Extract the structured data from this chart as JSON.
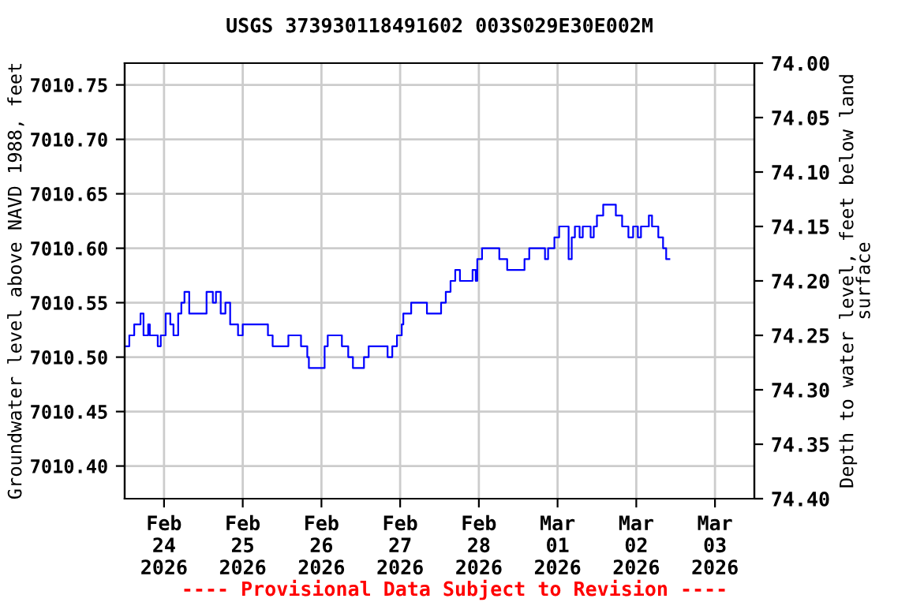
{
  "chart_data": {
    "type": "step",
    "title": "USGS 373930118491602 003S029E30E002M",
    "ylabel": "Groundwater level above NAVD 1988, feet",
    "y2label": "Depth to water level, feet below land\nsurface",
    "x": [
      "2026-02-23T12:30",
      "2026-02-23T13:25",
      "2026-02-23T14:55",
      "2026-02-23T16:50",
      "2026-02-23T17:45",
      "2026-02-23T19:10",
      "2026-02-23T19:40",
      "2026-02-23T22:05",
      "2026-02-23T23:00",
      "2026-02-24T00:30",
      "2026-02-24T01:55",
      "2026-02-24T02:53",
      "2026-02-24T04:19",
      "2026-02-24T05:17",
      "2026-02-24T06:14",
      "2026-02-24T07:41",
      "2026-02-24T12:29",
      "2026-02-24T12:58",
      "2026-02-24T14:53",
      "2026-02-24T15:50",
      "2026-02-24T17:17",
      "2026-02-24T18:43",
      "2026-02-24T20:10",
      "2026-02-24T22:34",
      "2026-02-25T00:00",
      "2026-02-25T07:41",
      "2026-02-25T09:07",
      "2026-02-25T13:55",
      "2026-02-25T17:46",
      "2026-02-25T19:41",
      "2026-02-25T20:10",
      "2026-02-25T23:31",
      "2026-02-26T00:58",
      "2026-02-26T01:55",
      "2026-02-26T06:14",
      "2026-02-26T08:10",
      "2026-02-26T09:36",
      "2026-02-26T12:58",
      "2026-02-26T14:24",
      "2026-02-26T20:10",
      "2026-02-26T21:36",
      "2026-02-26T23:02",
      "2026-02-27T00:29",
      "2026-02-27T00:58",
      "2026-02-27T03:22",
      "2026-02-27T08:10",
      "2026-02-27T12:29",
      "2026-02-27T13:55",
      "2026-02-27T15:22",
      "2026-02-27T16:48",
      "2026-02-27T18:14",
      "2026-02-27T22:05",
      "2026-02-27T23:02",
      "2026-02-27T23:31",
      "2026-02-28T00:58",
      "2026-02-28T06:14",
      "2026-02-28T08:38",
      "2026-02-28T13:55",
      "2026-02-28T15:22",
      "2026-02-28T20:10",
      "2026-02-28T21:07",
      "2026-02-28T23:02",
      "2026-03-01T00:29",
      "2026-03-01T03:22",
      "2026-03-01T04:19",
      "2026-03-01T05:17",
      "2026-03-01T06:43",
      "2026-03-01T07:41",
      "2026-03-01T10:05",
      "2026-03-01T11:02",
      "2026-03-01T12:00",
      "2026-03-01T13:55",
      "2026-03-01T17:46",
      "2026-03-01T19:41",
      "2026-03-01T21:36",
      "2026-03-01T23:02",
      "2026-03-02T00:29",
      "2026-03-02T01:26",
      "2026-03-02T03:50",
      "2026-03-02T04:48",
      "2026-03-02T06:43",
      "2026-03-02T08:10",
      "2026-03-02T09:07",
      "2026-03-02T10:05"
    ],
    "series": [
      {
        "color": "#0000ff",
        "values": [
          7010.51,
          7010.52,
          7010.53,
          7010.54,
          7010.52,
          7010.53,
          7010.52,
          7010.51,
          7010.52,
          7010.54,
          7010.53,
          7010.52,
          7010.54,
          7010.55,
          7010.56,
          7010.54,
          7010.54,
          7010.56,
          7010.55,
          7010.56,
          7010.54,
          7010.55,
          7010.53,
          7010.52,
          7010.53,
          7010.52,
          7010.51,
          7010.52,
          7010.51,
          7010.5,
          7010.49,
          7010.49,
          7010.51,
          7010.52,
          7010.51,
          7010.5,
          7010.49,
          7010.5,
          7010.51,
          7010.5,
          7010.51,
          7010.52,
          7010.53,
          7010.54,
          7010.55,
          7010.54,
          7010.55,
          7010.56,
          7010.57,
          7010.58,
          7010.57,
          7010.58,
          7010.57,
          7010.59,
          7010.6,
          7010.59,
          7010.58,
          7010.59,
          7010.6,
          7010.59,
          7010.6,
          7010.61,
          7010.62,
          7010.59,
          7010.61,
          7010.62,
          7010.61,
          7010.62,
          7010.61,
          7010.62,
          7010.63,
          7010.64,
          7010.63,
          7010.62,
          7010.61,
          7010.62,
          7010.61,
          7010.62,
          7010.63,
          7010.62,
          7010.61,
          7010.6,
          7010.59,
          7010.59
        ]
      }
    ],
    "xlim": [
      "2026-02-23T12:00",
      "2026-03-03T12:00"
    ],
    "xticks": [
      {
        "value": "2026-02-24",
        "label": "Feb\n24\n2026"
      },
      {
        "value": "2026-02-25",
        "label": "Feb\n25\n2026"
      },
      {
        "value": "2026-02-26",
        "label": "Feb\n26\n2026"
      },
      {
        "value": "2026-02-27",
        "label": "Feb\n27\n2026"
      },
      {
        "value": "2026-02-28",
        "label": "Feb\n28\n2026"
      },
      {
        "value": "2026-03-01",
        "label": "Mar\n01\n2026"
      },
      {
        "value": "2026-03-02",
        "label": "Mar\n02\n2026"
      },
      {
        "value": "2026-03-03",
        "label": "Mar\n03\n2026"
      }
    ],
    "ylim": [
      7010.37,
      7010.77
    ],
    "yticks": [
      {
        "value": 7010.4,
        "label": "7010.40"
      },
      7010.45,
      {
        "value": 7010.5,
        "label": "7010.50"
      },
      7010.55,
      {
        "value": 7010.6,
        "label": "7010.60"
      },
      7010.65,
      {
        "value": 7010.7,
        "label": "7010.70"
      },
      7010.75
    ],
    "y2lim": [
      74.4,
      74.0
    ],
    "y2ticks": [
      {
        "value": 74.0,
        "label": "74.00"
      },
      74.05,
      {
        "value": 74.1,
        "label": "74.10"
      },
      74.15,
      {
        "value": 74.2,
        "label": "74.20"
      },
      74.25,
      {
        "value": 74.3,
        "label": "74.30"
      },
      74.35,
      {
        "value": 74.4,
        "label": "74.40"
      }
    ],
    "grid": true,
    "legend": false,
    "line_style": "solid",
    "marker": "none",
    "annotations": [
      "---- Provisional Data Subject to Revision ----"
    ]
  }
}
